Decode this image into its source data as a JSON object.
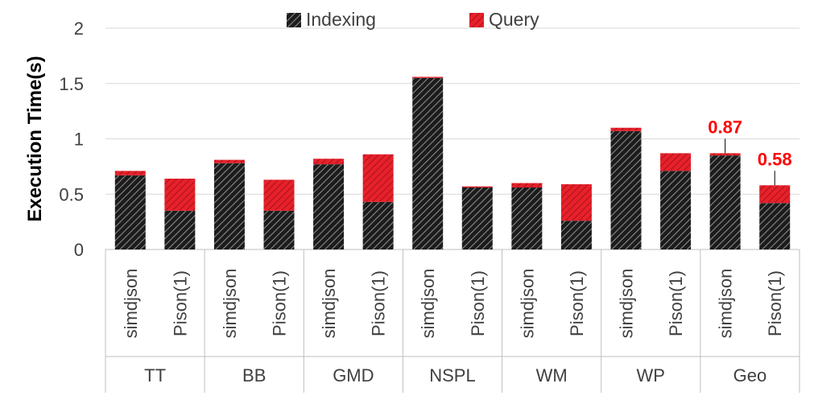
{
  "chart_data": {
    "type": "bar",
    "stacked": true,
    "ylabel": "Execution Time(s)",
    "ylim": [
      0,
      2
    ],
    "yticks": [
      "0",
      "0.5",
      "1",
      "1.5",
      "2"
    ],
    "grid": true,
    "legend_placement": "top-center",
    "groups": [
      "TT",
      "BB",
      "GMD",
      "NSPL",
      "WM",
      "WP",
      "Geo"
    ],
    "methods": [
      "simdjson",
      "Pison(1)"
    ],
    "categories": [
      "TT simdjson",
      "TT Pison(1)",
      "BB simdjson",
      "BB Pison(1)",
      "GMD simdjson",
      "GMD Pison(1)",
      "NSPL simdjson",
      "NSPL Pison(1)",
      "WM simdjson",
      "WM Pison(1)",
      "WP simdjson",
      "WP Pison(1)",
      "Geo simdjson",
      "Geo Pison(1)"
    ],
    "series": [
      {
        "name": "Indexing",
        "color": "#1a1a1a",
        "pattern": "diagonal-hatch-dark",
        "values": [
          0.67,
          0.35,
          0.78,
          0.35,
          0.77,
          0.43,
          1.55,
          0.56,
          0.56,
          0.26,
          1.07,
          0.71,
          0.85,
          0.42
        ]
      },
      {
        "name": "Query",
        "color": "#e8202a",
        "pattern": "diagonal-hatch-red",
        "values": [
          0.04,
          0.29,
          0.03,
          0.28,
          0.05,
          0.43,
          0.01,
          0.01,
          0.04,
          0.33,
          0.03,
          0.16,
          0.02,
          0.16
        ]
      }
    ],
    "annotations": [
      {
        "text": "0.87",
        "category": "Geo simdjson",
        "color": "#ff0000"
      },
      {
        "text": "0.58",
        "category": "Geo Pison(1)",
        "color": "#ff0000"
      }
    ]
  }
}
